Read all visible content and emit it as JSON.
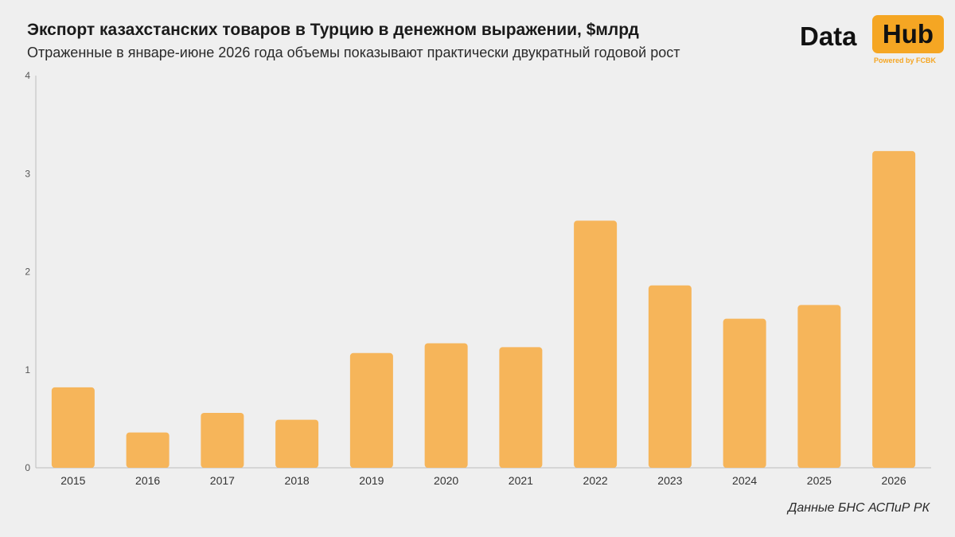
{
  "header": {
    "title": "Экспорт казахстанских товаров в Турцию в денежном выражении, $млрд",
    "subtitle": "Отраженные в январе-июне 2026 года объемы показывают практически двукратный годовой рост"
  },
  "logo": {
    "data_text": "Data",
    "hub_text": "Hub",
    "powered_text": "Powered by FCBK"
  },
  "source": "Данные БНС АСПиР РК",
  "colors": {
    "bar": "#f6b55a",
    "accent": "#f5a623",
    "axis": "#555555"
  },
  "chart_data": {
    "type": "bar",
    "categories": [
      "2015",
      "2016",
      "2017",
      "2018",
      "2019",
      "2020",
      "2021",
      "2022",
      "2023",
      "2024",
      "2025",
      "2026"
    ],
    "values": [
      0.82,
      0.36,
      0.56,
      0.49,
      1.17,
      1.27,
      1.23,
      2.52,
      1.86,
      1.52,
      1.66,
      3.23
    ],
    "ylim": [
      0,
      4
    ],
    "yticks": [
      "0",
      "1",
      "2",
      "3",
      "4"
    ],
    "grid": false
  }
}
